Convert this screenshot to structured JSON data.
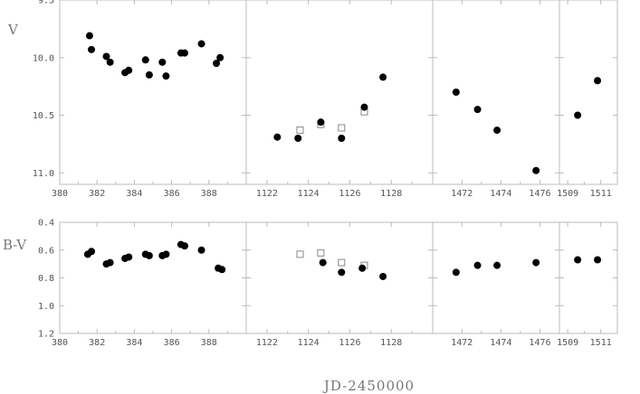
{
  "chart_data": {
    "type": "scatter",
    "xlabel": "JD-2450000",
    "grid": false,
    "rows": [
      {
        "ylabel": "V",
        "ylim": [
          9.5,
          11.1
        ],
        "yticks": [
          9.5,
          10.0,
          10.5,
          11.0
        ],
        "ytick_labels": [
          "9.5",
          "10.0",
          "10.5",
          "11.0"
        ],
        "inverted": true
      },
      {
        "ylabel": "B-V",
        "ylim": [
          0.4,
          1.2
        ],
        "yticks": [
          0.4,
          0.6,
          0.8,
          1.0,
          1.2
        ],
        "ytick_labels": [
          "0.4",
          "0.6",
          "0.8",
          "1.0",
          "1.2"
        ],
        "inverted": true
      }
    ],
    "columns": [
      {
        "xlim": [
          380,
          390
        ],
        "xticks": [
          380,
          382,
          384,
          386,
          388
        ],
        "xtick_labels": [
          "380",
          "382",
          "384",
          "386",
          "388"
        ],
        "series": {
          "V_filled": [
            [
              381.6,
              9.81
            ],
            [
              381.7,
              9.93
            ],
            [
              382.5,
              9.99
            ],
            [
              382.7,
              10.04
            ],
            [
              383.5,
              10.13
            ],
            [
              383.7,
              10.11
            ],
            [
              384.6,
              10.02
            ],
            [
              384.8,
              10.15
            ],
            [
              385.5,
              10.04
            ],
            [
              385.7,
              10.16
            ],
            [
              386.5,
              9.96
            ],
            [
              386.7,
              9.96
            ],
            [
              387.6,
              9.88
            ],
            [
              388.4,
              10.05
            ],
            [
              388.6,
              10.0
            ]
          ],
          "V_open": [],
          "BV_filled": [
            [
              381.5,
              0.63
            ],
            [
              381.7,
              0.61
            ],
            [
              382.5,
              0.7
            ],
            [
              382.7,
              0.69
            ],
            [
              383.5,
              0.66
            ],
            [
              383.7,
              0.65
            ],
            [
              384.6,
              0.63
            ],
            [
              384.8,
              0.64
            ],
            [
              385.5,
              0.64
            ],
            [
              385.7,
              0.63
            ],
            [
              386.5,
              0.56
            ],
            [
              386.7,
              0.57
            ],
            [
              387.6,
              0.6
            ],
            [
              388.5,
              0.73
            ],
            [
              388.7,
              0.74
            ]
          ],
          "BV_open": []
        }
      },
      {
        "xlim": [
          1121,
          1130
        ],
        "xticks": [
          1122,
          1124,
          1126,
          1128
        ],
        "xtick_labels": [
          "1122",
          "1124",
          "1126",
          "1128"
        ],
        "series": {
          "V_filled": [
            [
              1122.5,
              10.69
            ],
            [
              1123.5,
              10.7
            ],
            [
              1124.6,
              10.56
            ],
            [
              1125.6,
              10.7
            ],
            [
              1126.7,
              10.43
            ],
            [
              1127.6,
              10.17
            ]
          ],
          "V_open": [
            [
              1123.6,
              10.63
            ],
            [
              1124.6,
              10.58
            ],
            [
              1125.6,
              10.61
            ],
            [
              1126.7,
              10.47
            ]
          ],
          "BV_filled": [
            [
              1124.7,
              0.69
            ],
            [
              1125.6,
              0.76
            ],
            [
              1126.6,
              0.73
            ],
            [
              1127.6,
              0.79
            ]
          ],
          "BV_open": [
            [
              1123.6,
              0.63
            ],
            [
              1124.6,
              0.62
            ],
            [
              1125.6,
              0.69
            ],
            [
              1126.7,
              0.71
            ]
          ]
        }
      },
      {
        "xlim": [
          1470.5,
          1477
        ],
        "xticks": [
          1472,
          1474,
          1476
        ],
        "xtick_labels": [
          "1472",
          "1474",
          "1476"
        ],
        "series": {
          "V_filled": [
            [
              1471.7,
              10.3
            ],
            [
              1472.8,
              10.45
            ],
            [
              1473.8,
              10.63
            ],
            [
              1475.8,
              10.98
            ]
          ],
          "V_open": [],
          "BV_filled": [
            [
              1471.7,
              0.76
            ],
            [
              1472.8,
              0.71
            ],
            [
              1473.8,
              0.71
            ],
            [
              1475.8,
              0.69
            ]
          ],
          "BV_open": []
        }
      },
      {
        "xlim": [
          1508.5,
          1512
        ],
        "xticks": [
          1509,
          1511
        ],
        "xtick_labels": [
          "1509",
          "1511"
        ],
        "series": {
          "V_filled": [
            [
              1509.6,
              10.5
            ],
            [
              1510.8,
              10.2
            ]
          ],
          "V_open": [],
          "BV_filled": [
            [
              1509.6,
              0.67
            ],
            [
              1510.8,
              0.67
            ]
          ],
          "BV_open": []
        }
      }
    ]
  }
}
